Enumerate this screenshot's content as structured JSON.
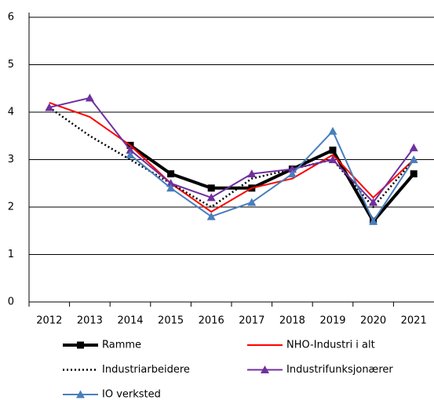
{
  "chart_data": {
    "type": "line",
    "categories": [
      "2012",
      "2013",
      "2014",
      "2015",
      "2016",
      "2017",
      "2018",
      "2019",
      "2020",
      "2021"
    ],
    "series": [
      {
        "name": "Ramme",
        "color": "#000000",
        "width": 4,
        "dash": "none",
        "marker": "square",
        "values": [
          null,
          null,
          3.3,
          2.7,
          2.4,
          2.4,
          2.8,
          3.2,
          1.7,
          2.7
        ]
      },
      {
        "name": "NHO-Industri i alt",
        "color": "#ff0000",
        "width": 2,
        "dash": "none",
        "marker": "none",
        "values": [
          4.2,
          3.9,
          3.3,
          2.5,
          1.9,
          2.4,
          2.6,
          3.1,
          2.2,
          3.0
        ]
      },
      {
        "name": "Industriarbeidere",
        "color": "#000000",
        "width": 2.5,
        "dash": "2 3",
        "marker": "none",
        "values": [
          4.1,
          3.5,
          3.0,
          2.5,
          2.0,
          2.6,
          2.8,
          3.0,
          2.0,
          3.0
        ]
      },
      {
        "name": "Industrifunksjonærer",
        "color": "#7030a0",
        "width": 2,
        "dash": "none",
        "marker": "triangle",
        "values": [
          4.1,
          4.3,
          3.2,
          2.5,
          2.2,
          2.7,
          2.8,
          3.0,
          2.1,
          3.25
        ]
      },
      {
        "name": "IO verksted",
        "color": "#4a7ebb",
        "width": 2,
        "dash": "none",
        "marker": "triangle",
        "values": [
          null,
          null,
          3.1,
          2.4,
          1.8,
          2.1,
          2.7,
          3.6,
          1.7,
          3.0
        ]
      }
    ],
    "ylim": [
      0,
      6
    ],
    "yticks": [
      0,
      1,
      2,
      3,
      4,
      5,
      6
    ],
    "grid": true,
    "legend": "bottom"
  }
}
